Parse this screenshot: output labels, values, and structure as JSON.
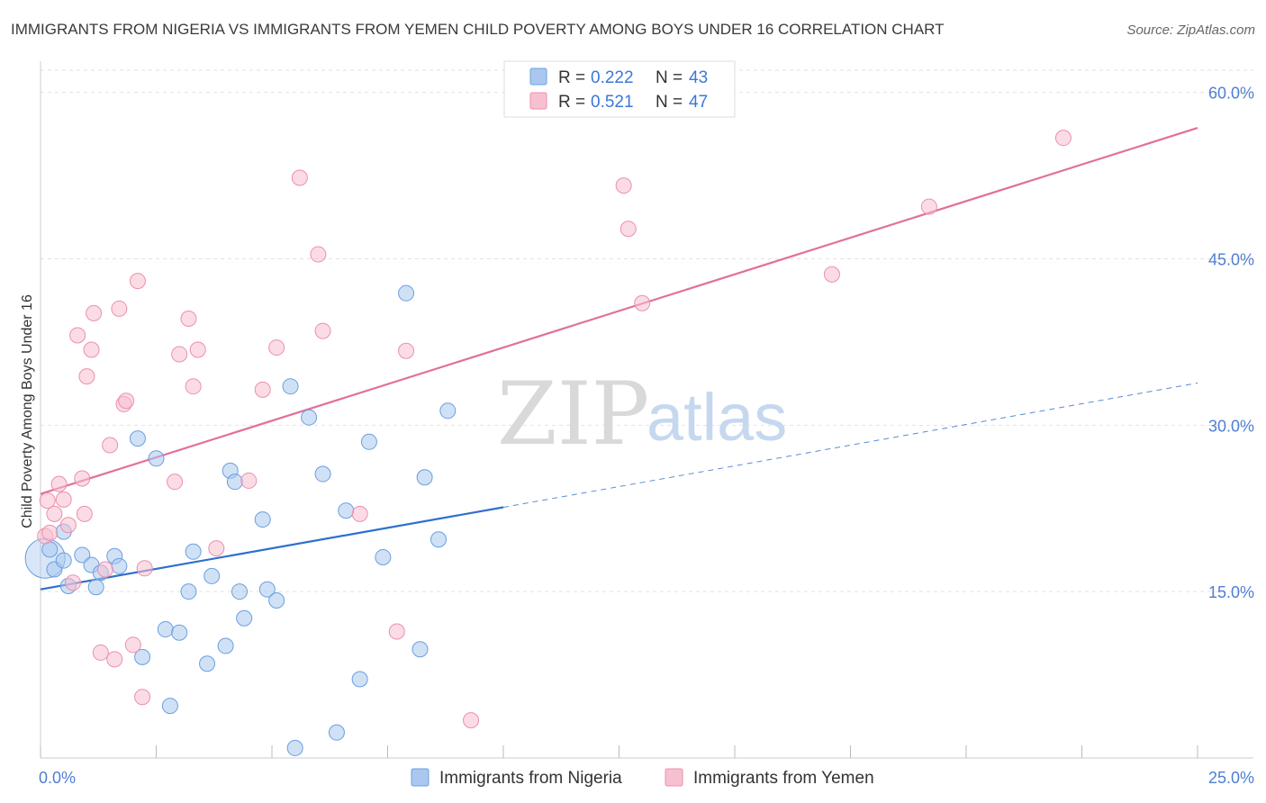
{
  "chart_data": {
    "type": "scatter",
    "title": "IMMIGRANTS FROM NIGERIA VS IMMIGRANTS FROM YEMEN CHILD POVERTY AMONG BOYS UNDER 16 CORRELATION CHART",
    "source": "Source: ZipAtlas.com",
    "ylabel": "Child Poverty Among Boys Under 16",
    "xlim": [
      0,
      25
    ],
    "ylim": [
      0,
      62
    ],
    "x_tick_labels": [
      {
        "value": 0,
        "label": "0.0%"
      },
      {
        "value": 25,
        "label": "25.0%"
      }
    ],
    "y_tick_labels": [
      {
        "value": 15,
        "label": "15.0%"
      },
      {
        "value": 30,
        "label": "30.0%"
      },
      {
        "value": 45,
        "label": "45.0%"
      },
      {
        "value": 60,
        "label": "60.0%"
      }
    ],
    "grid": true,
    "legend_position": "top-center",
    "watermark": {
      "part1": "ZIP",
      "part2": "atlas"
    },
    "series": [
      {
        "name": "Immigrants from Nigeria",
        "color": "#aac8ef",
        "stroke": "#6a9fe0",
        "line_color": "#2e6fcc",
        "R": "0.222",
        "N": "43",
        "trend": {
          "x0": 0,
          "y0": 15.2,
          "x1": 10,
          "y1": 22.6,
          "dashed_to_x": 25,
          "dashed_to_y": 33.8
        },
        "points": [
          [
            0.2,
            18.8
          ],
          [
            0.3,
            17.0
          ],
          [
            0.5,
            20.4
          ],
          [
            0.6,
            15.5
          ],
          [
            0.9,
            18.3
          ],
          [
            1.1,
            17.4
          ],
          [
            1.3,
            16.7
          ],
          [
            1.6,
            18.2
          ],
          [
            1.7,
            17.3
          ],
          [
            2.1,
            28.8
          ],
          [
            2.5,
            27.0
          ],
          [
            2.2,
            9.1
          ],
          [
            2.7,
            11.6
          ],
          [
            2.8,
            4.7
          ],
          [
            3.0,
            11.3
          ],
          [
            3.2,
            15.0
          ],
          [
            3.3,
            18.6
          ],
          [
            3.6,
            8.5
          ],
          [
            3.7,
            16.4
          ],
          [
            4.0,
            10.1
          ],
          [
            4.1,
            25.9
          ],
          [
            4.2,
            24.9
          ],
          [
            4.3,
            15.0
          ],
          [
            4.4,
            12.6
          ],
          [
            4.8,
            21.5
          ],
          [
            4.9,
            15.2
          ],
          [
            5.1,
            14.2
          ],
          [
            5.4,
            33.5
          ],
          [
            5.5,
            0.9
          ],
          [
            5.8,
            30.7
          ],
          [
            6.1,
            25.6
          ],
          [
            6.4,
            2.3
          ],
          [
            6.6,
            22.3
          ],
          [
            6.9,
            7.1
          ],
          [
            7.1,
            28.5
          ],
          [
            7.4,
            18.1
          ],
          [
            7.9,
            41.9
          ],
          [
            8.2,
            9.8
          ],
          [
            8.3,
            25.3
          ],
          [
            8.8,
            31.3
          ],
          [
            8.6,
            19.7
          ],
          [
            1.2,
            15.4
          ],
          [
            0.5,
            17.8
          ]
        ]
      },
      {
        "name": "Immigrants from Yemen",
        "color": "#f7c0d0",
        "stroke": "#ec8fae",
        "line_color": "#e2709a",
        "R": "0.521",
        "N": "47",
        "trend": {
          "x0": 0,
          "y0": 23.8,
          "x1": 25,
          "y1": 56.8
        },
        "points": [
          [
            0.1,
            20.0
          ],
          [
            0.2,
            20.3
          ],
          [
            0.3,
            22.0
          ],
          [
            0.4,
            24.7
          ],
          [
            0.5,
            23.3
          ],
          [
            0.6,
            21.0
          ],
          [
            0.7,
            15.8
          ],
          [
            0.8,
            38.1
          ],
          [
            0.9,
            25.2
          ],
          [
            0.95,
            22.0
          ],
          [
            1.0,
            34.4
          ],
          [
            1.1,
            36.8
          ],
          [
            1.15,
            40.1
          ],
          [
            1.3,
            9.5
          ],
          [
            1.4,
            17.0
          ],
          [
            1.5,
            28.2
          ],
          [
            1.6,
            8.9
          ],
          [
            1.7,
            40.5
          ],
          [
            1.8,
            31.9
          ],
          [
            1.85,
            32.2
          ],
          [
            2.0,
            10.2
          ],
          [
            2.1,
            43.0
          ],
          [
            2.2,
            5.5
          ],
          [
            2.25,
            17.1
          ],
          [
            2.9,
            24.9
          ],
          [
            3.0,
            36.4
          ],
          [
            3.2,
            39.6
          ],
          [
            3.3,
            33.5
          ],
          [
            3.4,
            36.8
          ],
          [
            3.8,
            18.9
          ],
          [
            4.5,
            25.0
          ],
          [
            4.8,
            33.2
          ],
          [
            5.1,
            37.0
          ],
          [
            5.6,
            52.3
          ],
          [
            6.0,
            45.4
          ],
          [
            6.1,
            38.5
          ],
          [
            6.9,
            22.0
          ],
          [
            7.7,
            11.4
          ],
          [
            7.9,
            36.7
          ],
          [
            9.3,
            3.4
          ],
          [
            12.6,
            51.6
          ],
          [
            12.7,
            47.7
          ],
          [
            13.0,
            41.0
          ],
          [
            17.1,
            43.6
          ],
          [
            19.2,
            49.7
          ],
          [
            22.1,
            55.9
          ],
          [
            0.15,
            23.2
          ]
        ]
      }
    ]
  }
}
